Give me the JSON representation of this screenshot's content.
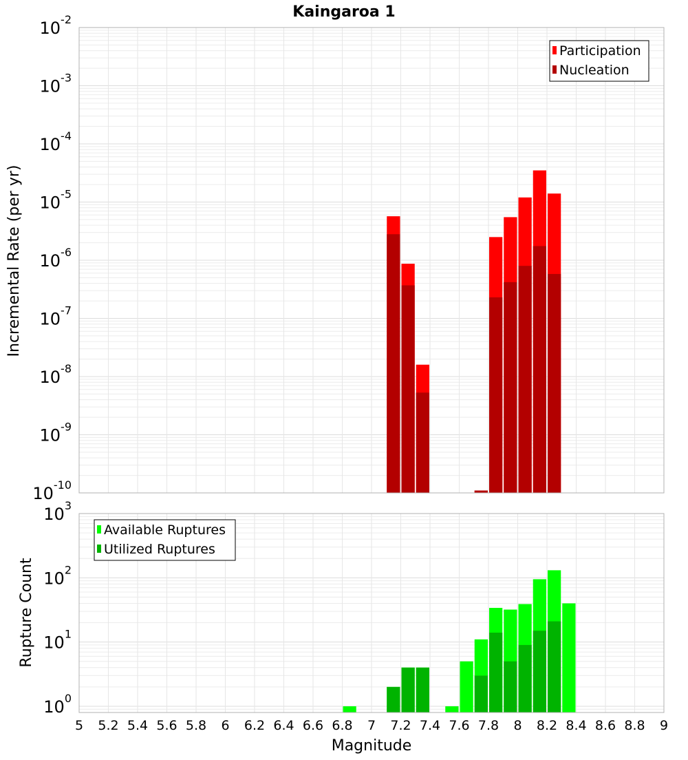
{
  "title": "Kaingaroa 1",
  "xlabel": "Magnitude",
  "x_ticks": [
    "5",
    "5.2",
    "5.4",
    "5.6",
    "5.8",
    "6",
    "6.2",
    "6.4",
    "6.6",
    "6.8",
    "7",
    "7.2",
    "7.4",
    "7.6",
    "7.8",
    "8",
    "8.2",
    "8.4",
    "8.6",
    "8.8",
    "9"
  ],
  "colors": {
    "participation": "#ff0000",
    "nucleation": "#b30000",
    "available": "#00ff00",
    "utilized": "#00b300"
  },
  "chart_data": [
    {
      "type": "bar",
      "title": "Kaingaroa 1",
      "xlabel": "",
      "ylabel": "Incremental Rate (per yr)",
      "xlim": [
        5,
        9
      ],
      "ylim": [
        1e-10,
        0.01
      ],
      "yscale": "log",
      "y_tick_exponents": [
        "-2",
        "-3",
        "-4",
        "-5",
        "-6",
        "-7",
        "-8",
        "-9",
        "-10"
      ],
      "grid": true,
      "legend": "top-right",
      "series": [
        {
          "name": "Participation",
          "x": [
            7.15,
            7.25,
            7.35,
            7.75,
            7.85,
            7.95,
            8.05,
            8.15,
            8.25
          ],
          "values": [
            5.7e-06,
            8.7e-07,
            1.6e-08,
            1.1e-10,
            2.5e-06,
            5.5e-06,
            1.2e-05,
            3.5e-05,
            1.4e-05
          ]
        },
        {
          "name": "Nucleation",
          "x": [
            7.15,
            7.25,
            7.35,
            7.75,
            7.85,
            7.95,
            8.05,
            8.15,
            8.25
          ],
          "values": [
            2.8e-06,
            3.7e-07,
            5.3e-09,
            1.1e-10,
            2.3e-07,
            4.2e-07,
            8e-07,
            1.75e-06,
            5.8e-07
          ]
        }
      ]
    },
    {
      "type": "bar",
      "title": "",
      "xlabel": "Magnitude",
      "ylabel": "Rupture Count",
      "xlim": [
        5,
        9
      ],
      "ylim": [
        0.8,
        1000
      ],
      "yscale": "log",
      "y_tick_exponents": [
        "3",
        "2",
        "1",
        "0"
      ],
      "grid": true,
      "legend": "top-left",
      "series": [
        {
          "name": "Available Ruptures",
          "x": [
            6.85,
            7.15,
            7.25,
            7.35,
            7.55,
            7.65,
            7.75,
            7.85,
            7.95,
            8.05,
            8.15,
            8.25,
            8.35
          ],
          "values": [
            1,
            2,
            4,
            4,
            1,
            5,
            11,
            34,
            32,
            39,
            95,
            131,
            40
          ]
        },
        {
          "name": "Utilized Ruptures",
          "x": [
            7.15,
            7.25,
            7.35,
            7.75,
            7.85,
            7.95,
            8.05,
            8.15,
            8.25
          ],
          "values": [
            2,
            4,
            4,
            3,
            14,
            5,
            9,
            15,
            21
          ]
        }
      ]
    }
  ]
}
